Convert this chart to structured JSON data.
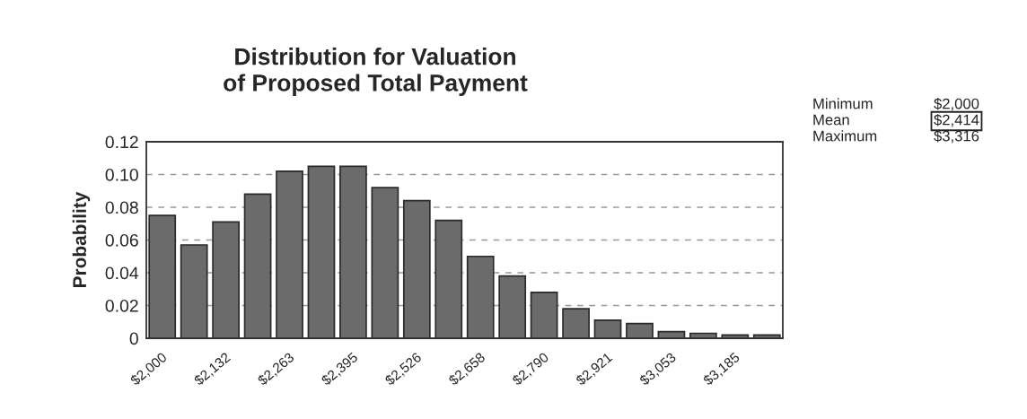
{
  "chart_data": {
    "type": "bar",
    "title": "Distribution for Valuation\nof Proposed Total Payment",
    "ylabel": "Probability",
    "categories": [
      "$2,000",
      null,
      "$2,132",
      null,
      "$2,263",
      null,
      "$2,395",
      null,
      "$2,526",
      null,
      "$2,658",
      null,
      "$2,790",
      null,
      "$2,921",
      null,
      "$3,053",
      null,
      "$3,185",
      null
    ],
    "values": [
      0.075,
      0.057,
      0.071,
      0.088,
      0.102,
      0.105,
      0.105,
      0.092,
      0.084,
      0.072,
      0.05,
      0.038,
      0.028,
      0.018,
      0.011,
      0.009,
      0.004,
      0.003,
      0.002,
      0.002
    ],
    "color": "#6b6b6b",
    "ylim": [
      0,
      0.12
    ],
    "yticks": [
      {
        "value": 0,
        "label": "0"
      },
      {
        "value": 0.02,
        "label": "0.02"
      },
      {
        "value": 0.04,
        "label": "0.04"
      },
      {
        "value": 0.06,
        "label": "0.06"
      },
      {
        "value": 0.08,
        "label": "0.08"
      },
      {
        "value": 0.1,
        "label": "0.10"
      },
      {
        "value": 0.12,
        "label": "0.12"
      }
    ],
    "grid": "y",
    "annotations": [
      "Minimum",
      "$2,000",
      "Mean",
      "$2,414",
      "Maximum",
      "$3,316"
    ]
  }
}
